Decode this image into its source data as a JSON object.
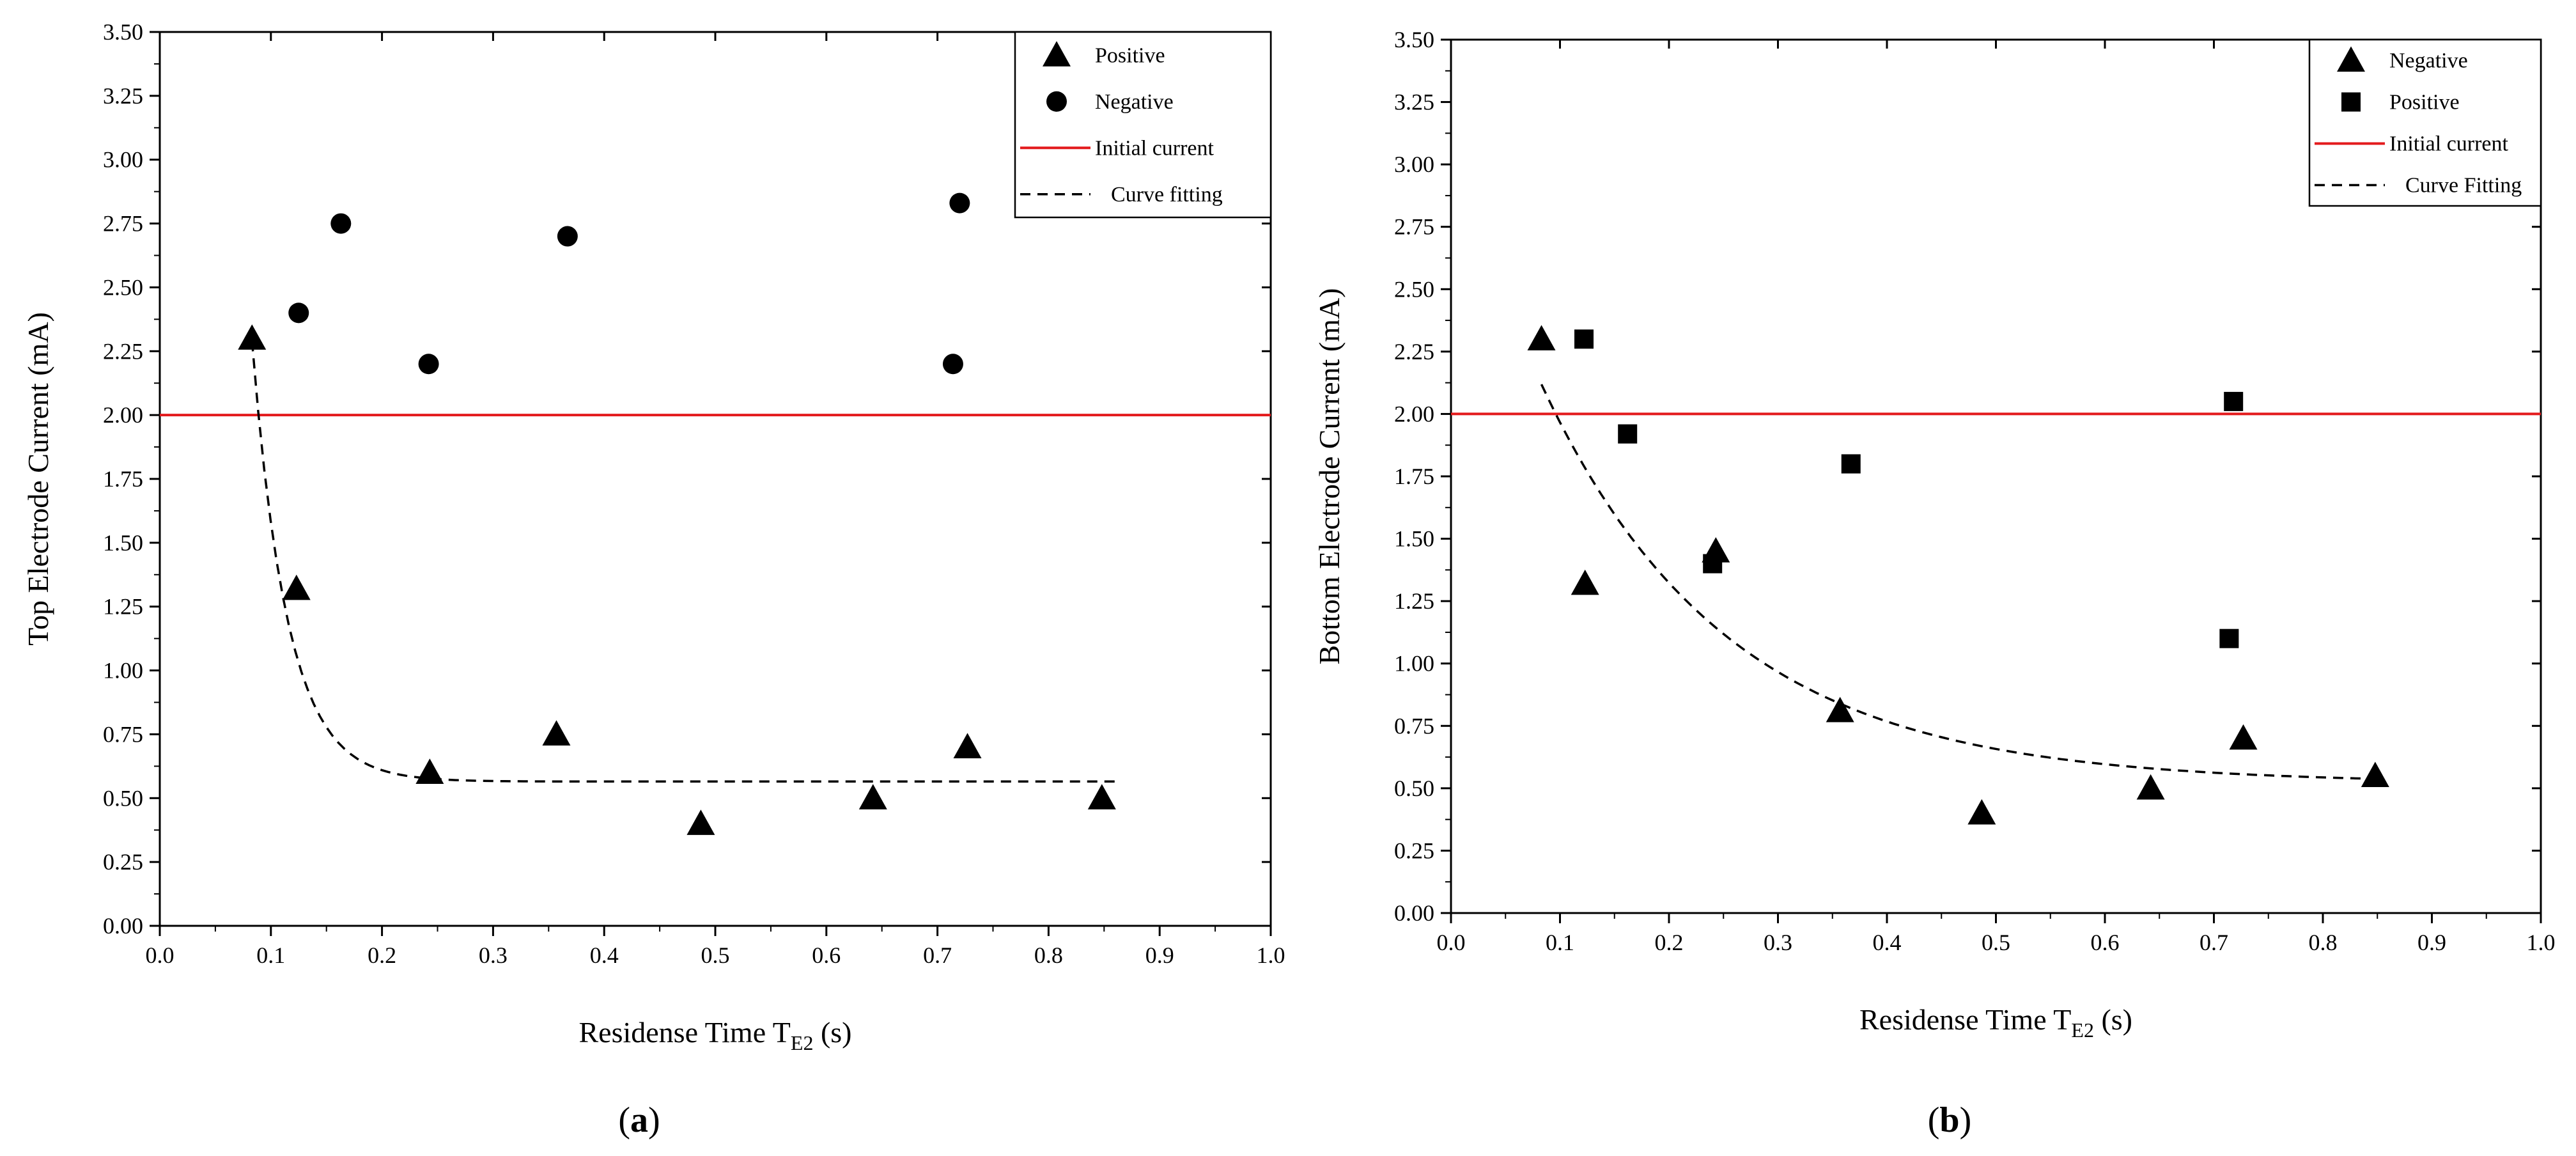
{
  "chart_data": [
    {
      "type": "scatter",
      "panel_label": "a",
      "xlabel": "Residense Time T",
      "xlabel_sub": "E2",
      "xlabel_unit": " (s)",
      "ylabel": "Top Electrode Current (mA)",
      "xlim": [
        0.0,
        1.0
      ],
      "ylim": [
        0.0,
        3.5
      ],
      "x_ticks": [
        "0.0",
        "0.1",
        "0.2",
        "0.3",
        "0.4",
        "0.5",
        "0.6",
        "0.7",
        "0.8",
        "0.9",
        "1.0"
      ],
      "y_ticks": [
        "0.00",
        "0.25",
        "0.50",
        "0.75",
        "1.00",
        "1.25",
        "1.50",
        "1.75",
        "2.00",
        "2.25",
        "2.50",
        "2.75",
        "3.00",
        "3.25",
        "3.50"
      ],
      "legend_position": "top-right",
      "series": [
        {
          "name": "Positive",
          "marker": "triangle",
          "color": "#000000",
          "x": [
            0.083,
            0.123,
            0.243,
            0.357,
            0.487,
            0.642,
            0.727,
            0.848
          ],
          "y": [
            2.3,
            1.32,
            0.6,
            0.75,
            0.4,
            0.5,
            0.7,
            0.5
          ]
        },
        {
          "name": "Negative",
          "marker": "circle",
          "color": "#000000",
          "x": [
            0.125,
            0.163,
            0.242,
            0.367,
            0.714,
            0.72
          ],
          "y": [
            2.4,
            2.75,
            2.2,
            2.7,
            2.2,
            2.83
          ]
        },
        {
          "name": "Initial current",
          "type": "hline",
          "color": "#e31a1c",
          "y": 2.0
        },
        {
          "name": "Curve fitting",
          "type": "fit",
          "style": "dashed",
          "color": "#000000",
          "model": "exponential_decay",
          "y0": 0.565,
          "A": 1.62,
          "x0": 0.085,
          "tau": 0.032,
          "x_range": [
            0.083,
            0.86
          ]
        }
      ]
    },
    {
      "type": "scatter",
      "panel_label": "b",
      "xlabel": "Residense Time T",
      "xlabel_sub": "E2",
      "xlabel_unit": " (s)",
      "ylabel": "Bottom Electrode Current (mA)",
      "xlim": [
        0.0,
        1.0
      ],
      "ylim": [
        0.0,
        3.5
      ],
      "x_ticks": [
        "0.0",
        "0.1",
        "0.2",
        "0.3",
        "0.4",
        "0.5",
        "0.6",
        "0.7",
        "0.8",
        "0.9",
        "1.0"
      ],
      "y_ticks": [
        "0.00",
        "0.25",
        "0.50",
        "0.75",
        "1.00",
        "1.25",
        "1.50",
        "1.75",
        "2.00",
        "2.25",
        "2.50",
        "2.75",
        "3.00",
        "3.25",
        "3.50"
      ],
      "legend_position": "top-right",
      "series": [
        {
          "name": "Negative",
          "marker": "triangle",
          "color": "#000000",
          "x": [
            0.083,
            0.123,
            0.243,
            0.357,
            0.487,
            0.642,
            0.727,
            0.848
          ],
          "y": [
            2.3,
            1.32,
            1.45,
            0.81,
            0.4,
            0.5,
            0.7,
            0.55
          ]
        },
        {
          "name": "Positive",
          "marker": "square",
          "color": "#000000",
          "x": [
            0.122,
            0.162,
            0.24,
            0.367,
            0.714,
            0.718
          ],
          "y": [
            2.3,
            1.92,
            1.4,
            1.8,
            1.1,
            2.05
          ]
        },
        {
          "name": "Initial current",
          "type": "hline",
          "color": "#e31a1c",
          "y": 2.0
        },
        {
          "name": "Curve Fitting",
          "type": "fit",
          "style": "dashed",
          "color": "#000000",
          "model": "exponential_decay",
          "y0": 0.52,
          "A": 1.58,
          "x0": 0.085,
          "tau": 0.17,
          "x_range": [
            0.083,
            0.85
          ]
        }
      ]
    }
  ]
}
